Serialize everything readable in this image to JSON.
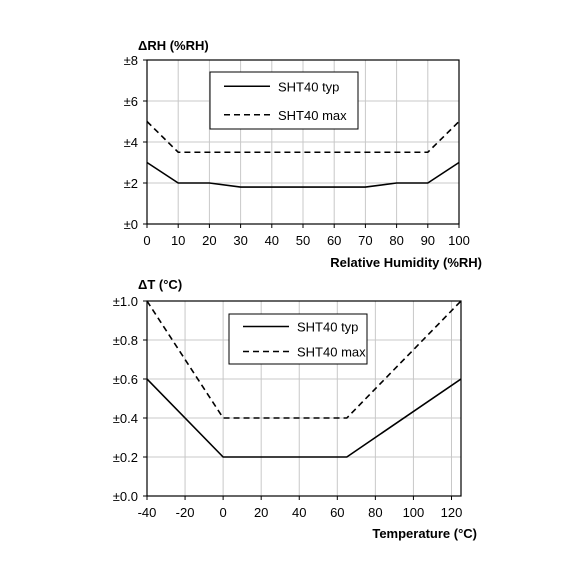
{
  "chart_data": [
    {
      "type": "line",
      "title": "",
      "ylabel": "ΔRH (%RH)",
      "xlabel": "Relative Humidity (%RH)",
      "xlim": [
        0,
        100
      ],
      "ylim": [
        0,
        8
      ],
      "x_ticks": [
        0,
        10,
        20,
        30,
        40,
        50,
        60,
        70,
        80,
        90,
        100
      ],
      "x_tick_labels": [
        "0",
        "10",
        "20",
        "30",
        "40",
        "50",
        "60",
        "70",
        "80",
        "90",
        "100"
      ],
      "y_ticks": [
        0,
        2,
        4,
        6,
        8
      ],
      "y_tick_labels": [
        "±0",
        "±2",
        "±4",
        "±6",
        "±8"
      ],
      "grid": true,
      "legend_position": "top-center",
      "series": [
        {
          "name": "SHT40 typ",
          "style": "solid",
          "x": [
            0,
            10,
            20,
            30,
            40,
            50,
            60,
            70,
            80,
            90,
            100
          ],
          "y": [
            3.0,
            2.0,
            2.0,
            1.8,
            1.8,
            1.8,
            1.8,
            1.8,
            2.0,
            2.0,
            3.0
          ]
        },
        {
          "name": "SHT40 max",
          "style": "dashed",
          "x": [
            0,
            10,
            20,
            30,
            40,
            50,
            60,
            70,
            80,
            90,
            100
          ],
          "y": [
            5.0,
            3.5,
            3.5,
            3.5,
            3.5,
            3.5,
            3.5,
            3.5,
            3.5,
            3.5,
            5.0
          ]
        }
      ]
    },
    {
      "type": "line",
      "title": "",
      "ylabel": "ΔT (°C)",
      "xlabel": "Temperature (°C)",
      "xlim": [
        -40,
        125
      ],
      "ylim": [
        0,
        1.0
      ],
      "x_ticks": [
        -40,
        -20,
        0,
        20,
        40,
        60,
        80,
        100,
        120
      ],
      "x_tick_labels": [
        "-40",
        "-20",
        "0",
        "20",
        "40",
        "60",
        "80",
        "100",
        "120"
      ],
      "y_ticks": [
        0,
        0.2,
        0.4,
        0.6,
        0.8,
        1.0
      ],
      "y_tick_labels": [
        "±0.0",
        "±0.2",
        "±0.4",
        "±0.6",
        "±0.8",
        "±1.0"
      ],
      "grid": true,
      "legend_position": "top-center",
      "series": [
        {
          "name": "SHT40 typ",
          "style": "solid",
          "x": [
            -40,
            0,
            65,
            125
          ],
          "y": [
            0.6,
            0.2,
            0.2,
            0.6
          ]
        },
        {
          "name": "SHT40 max",
          "style": "dashed",
          "x": [
            -40,
            0,
            65,
            125
          ],
          "y": [
            1.0,
            0.4,
            0.4,
            1.0
          ]
        }
      ]
    }
  ]
}
